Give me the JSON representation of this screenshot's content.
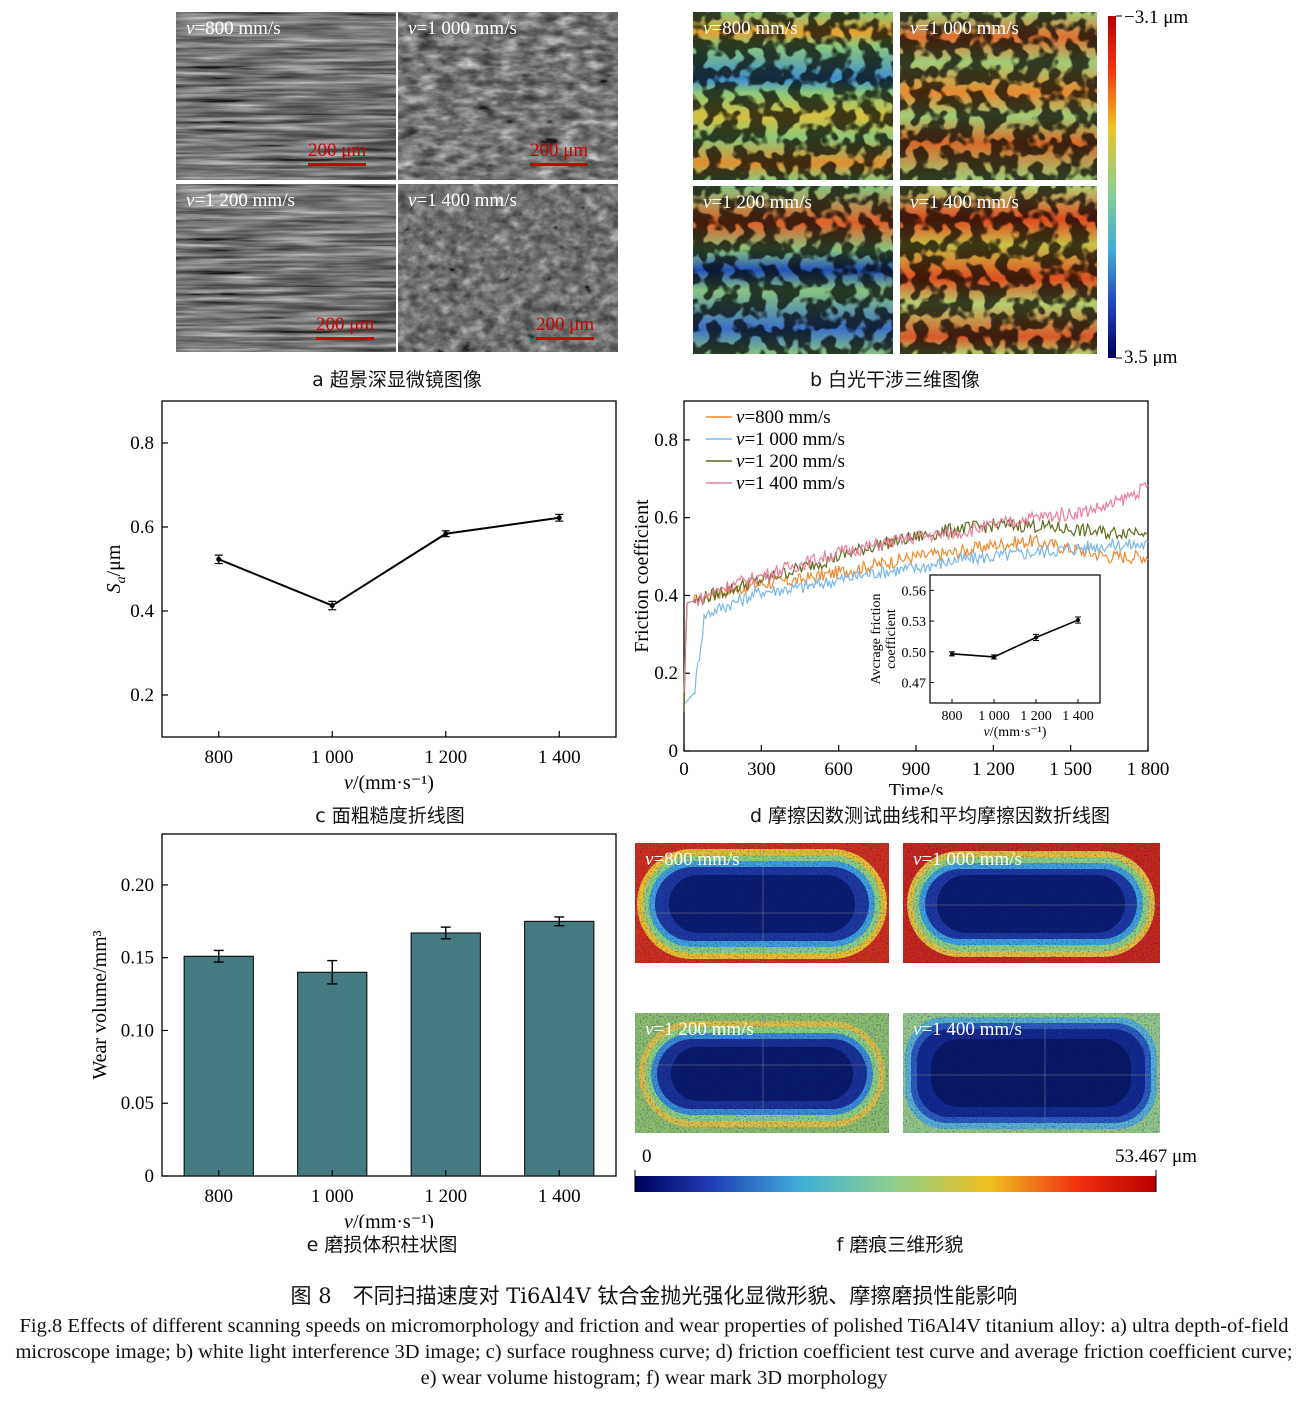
{
  "panel_a": {
    "labels": [
      "v=800 mm/s",
      "v=1 000 mm/s",
      "v=1 200 mm/s",
      "v=1 400 mm/s"
    ],
    "scalebar": "200 μm",
    "caption": "a  超景深显微镜图像"
  },
  "panel_b": {
    "labels": [
      "v=800 mm/s",
      "v=1 000 mm/s",
      "v=1 200 mm/s",
      "v=1 400 mm/s"
    ],
    "colorbar_top": "−3.1 μm",
    "colorbar_bottom": "3.5 μm",
    "caption": "b  白光干涉三维图像"
  },
  "panel_f": {
    "labels": [
      "v=800 mm/s",
      "v=1 000 mm/s",
      "v=1 200 mm/s",
      "v=1 400 mm/s"
    ],
    "colorbar_min": "0",
    "colorbar_max": "53.467 μm",
    "caption": "f  磨痕三维形貌"
  },
  "chart_data": [
    {
      "id": "c",
      "type": "line",
      "categories": [
        "800",
        "1 000",
        "1 200",
        "1 400"
      ],
      "x": [
        800,
        1000,
        1200,
        1400
      ],
      "values": [
        0.523,
        0.413,
        0.584,
        0.622
      ],
      "errors": [
        0.01,
        0.01,
        0.007,
        0.008
      ],
      "xlabel": "v/(mm·s⁻¹)",
      "ylabel": "Sa/μm",
      "xlim": [
        700,
        1500
      ],
      "ylim": [
        0.1,
        0.9
      ],
      "yticks": [
        "0.2",
        "0.4",
        "0.6",
        "0.8"
      ],
      "caption": "c  面粗糙度折线图"
    },
    {
      "id": "d",
      "type": "line",
      "xlabel": "Time/s",
      "ylabel": "Friction coefficient",
      "xlim": [
        0,
        1800
      ],
      "ylim": [
        0,
        0.9
      ],
      "xticks": [
        "0",
        "300",
        "600",
        "900",
        "1 200",
        "1 500",
        "1 800"
      ],
      "yticks": [
        "0",
        "0.2",
        "0.4",
        "0.6",
        "0.8"
      ],
      "series": [
        {
          "name": "v=800 mm/s",
          "color": "#f08a30",
          "x": [
            0,
            10,
            60,
            150,
            300,
            450,
            600,
            750,
            900,
            1050,
            1200,
            1350,
            1500,
            1650,
            1800
          ],
          "y": [
            0.12,
            0.38,
            0.39,
            0.41,
            0.43,
            0.44,
            0.46,
            0.48,
            0.5,
            0.51,
            0.53,
            0.54,
            0.52,
            0.5,
            0.5
          ]
        },
        {
          "name": "v=1 000 mm/s",
          "color": "#7ab8e8",
          "x": [
            0,
            40,
            80,
            150,
            300,
            450,
            600,
            750,
            900,
            1050,
            1200,
            1350,
            1500,
            1650,
            1800
          ],
          "y": [
            0.12,
            0.15,
            0.35,
            0.37,
            0.41,
            0.42,
            0.44,
            0.46,
            0.47,
            0.49,
            0.5,
            0.51,
            0.52,
            0.53,
            0.53
          ]
        },
        {
          "name": "v=1 200 mm/s",
          "color": "#5a6e1c",
          "x": [
            0,
            10,
            60,
            150,
            300,
            450,
            600,
            750,
            900,
            1050,
            1200,
            1350,
            1500,
            1650,
            1800
          ],
          "y": [
            0.1,
            0.38,
            0.39,
            0.41,
            0.44,
            0.47,
            0.5,
            0.53,
            0.55,
            0.57,
            0.58,
            0.58,
            0.57,
            0.56,
            0.57
          ]
        },
        {
          "name": "v=1 400 mm/s",
          "color": "#e8809e",
          "x": [
            0,
            10,
            60,
            150,
            300,
            450,
            600,
            750,
            900,
            1050,
            1200,
            1350,
            1500,
            1650,
            1800
          ],
          "y": [
            0.15,
            0.38,
            0.39,
            0.42,
            0.45,
            0.48,
            0.51,
            0.53,
            0.55,
            0.56,
            0.58,
            0.6,
            0.61,
            0.63,
            0.68
          ]
        }
      ],
      "legend": "top-left",
      "caption": "d  摩擦因数测试曲线和平均摩擦因数折线图",
      "inset": {
        "type": "line",
        "categories": [
          "800",
          "1 000",
          "1 200",
          "1 400"
        ],
        "x": [
          800,
          1000,
          1200,
          1400
        ],
        "values": [
          0.498,
          0.495,
          0.514,
          0.531
        ],
        "errors": [
          0.002,
          0.002,
          0.003,
          0.003
        ],
        "ylabel": "Avcrage friction coefficient",
        "xlabel": "v/(mm·s⁻¹)",
        "ylim": [
          0.45,
          0.575
        ],
        "yticks": [
          "0.47",
          "0.50",
          "0.53",
          "0.56"
        ]
      }
    },
    {
      "id": "e",
      "type": "bar",
      "categories": [
        "800",
        "1 000",
        "1 200",
        "1 400"
      ],
      "values": [
        0.151,
        0.14,
        0.167,
        0.175
      ],
      "errors": [
        0.004,
        0.008,
        0.004,
        0.003
      ],
      "color": "#447b80",
      "xlabel": "v/(mm·s⁻¹)",
      "ylabel": "Wear volume/mm³",
      "ylim": [
        0,
        0.235
      ],
      "yticks": [
        "0",
        "0.05",
        "0.10",
        "0.15",
        "0.20"
      ],
      "caption": "e  磨损体积柱状图"
    }
  ],
  "figure": {
    "title_cn": "图 8　不同扫描速度对 Ti6Al4V 钛合金抛光强化显微形貌、摩擦磨损性能影响",
    "title_en": "Fig.8 Effects of different scanning speeds on micromorphology and friction and wear properties of polished Ti6Al4V titanium alloy: a) ultra depth-of-field microscope image; b) white light interference 3D image; c) surface roughness curve; d) friction coefficient test curve and average friction coefficient curve; e) wear volume histogram; f) wear mark 3D morphology"
  }
}
